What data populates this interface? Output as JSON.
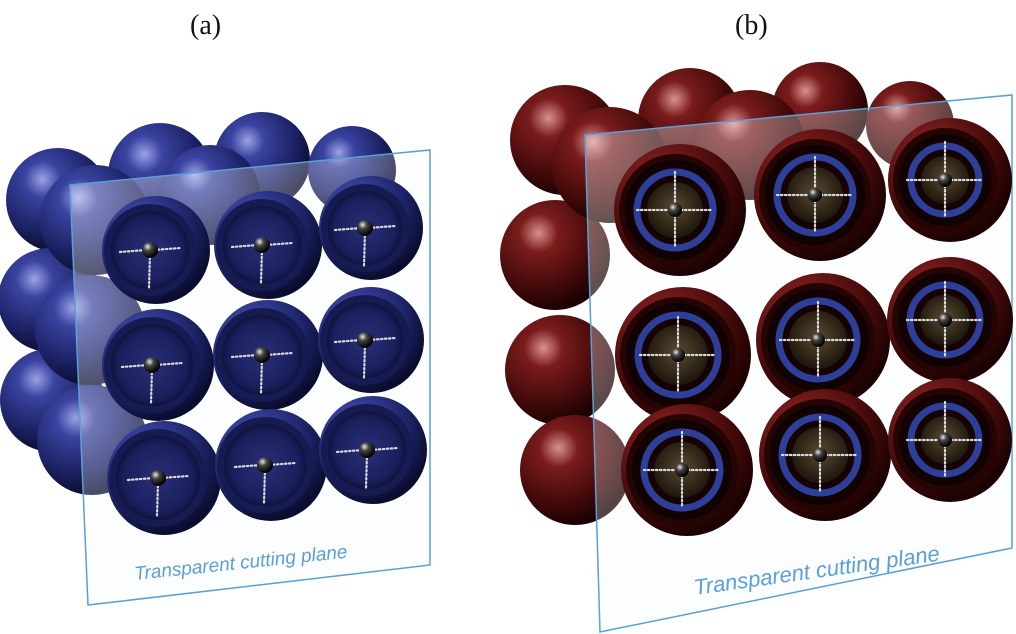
{
  "panels": [
    {
      "id": "a",
      "label": "(a)",
      "plane_label": "Transparent cutting plane",
      "colors": {
        "shell": "#232a6e",
        "shell_light": "#6a74c8",
        "shell_dark": "#0d1033"
      }
    },
    {
      "id": "b",
      "label": "(b)",
      "plane_label": "Transparent cutting plane",
      "colors": {
        "shell": "#4a0c0c",
        "shell_light": "#b05a5a",
        "shell_dark": "#1e0303",
        "inner_ring": "#2e3f9a",
        "core": "#3a2e1c"
      }
    }
  ],
  "plane_color": "#5a9fd6"
}
